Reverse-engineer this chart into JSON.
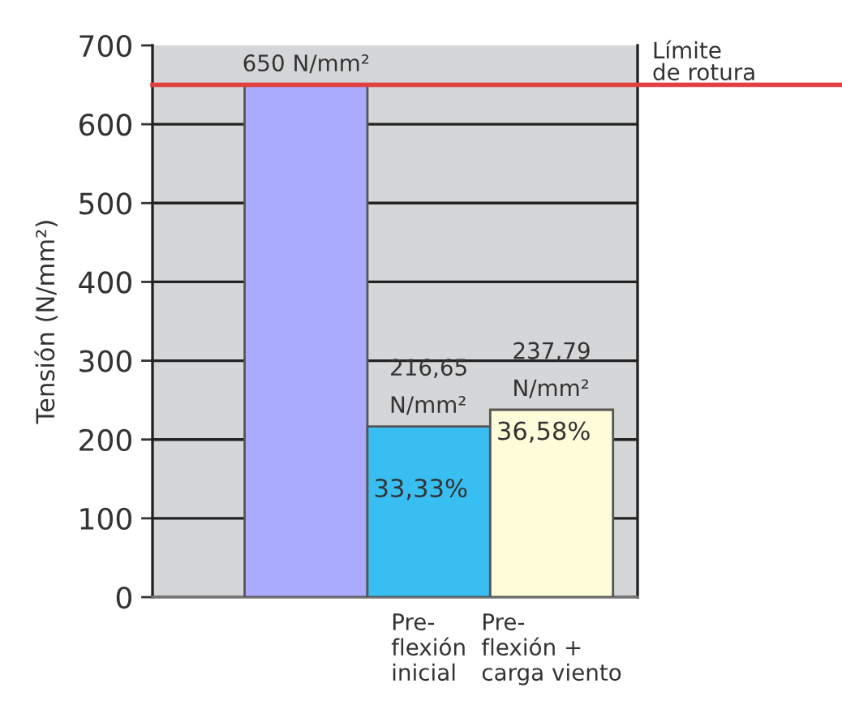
{
  "chart_data": {
    "type": "bar",
    "categories": [
      null,
      "Pre-\nflexión\ninicial",
      "Pre-\nflexión +\ncarga viento"
    ],
    "values": [
      650,
      216.65,
      237.79
    ],
    "colors": [
      "#aaaaff",
      "#38bef0",
      "#fffcd9"
    ],
    "value_labels": [
      "650 N/mm²",
      "216,65\nN/mm²",
      "237,79\nN/mm²"
    ],
    "ylabel": "Tensión (N/mm²)",
    "ylim": [
      0,
      700
    ],
    "yticks": [
      0,
      100,
      200,
      300,
      400,
      500,
      600,
      700
    ],
    "grid": "y",
    "ref_lines": [
      {
        "axis": "y",
        "value": 650,
        "label": "Límite\nde rotura",
        "color": "#e04040"
      }
    ],
    "annotations": [
      "33,33%",
      "36,58%"
    ]
  }
}
